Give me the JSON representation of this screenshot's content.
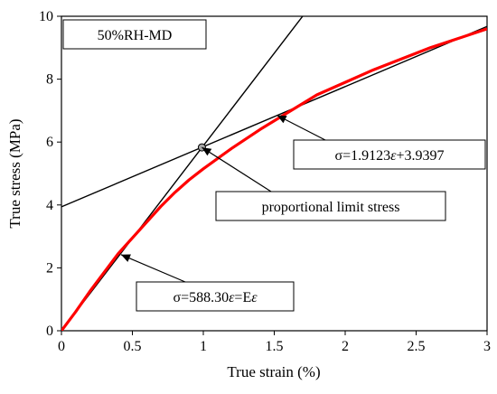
{
  "chart_data": {
    "type": "line",
    "title": "",
    "xlabel": "True strain (%)",
    "ylabel": "True stress (MPa)",
    "xlim": [
      0,
      3
    ],
    "ylim": [
      0,
      10
    ],
    "xticks": [
      "0",
      "0.5",
      "1",
      "1.5",
      "2",
      "2.5",
      "3"
    ],
    "yticks": [
      "0",
      "2",
      "4",
      "6",
      "8",
      "10"
    ],
    "grid": false,
    "legend": "none",
    "condition_label": "50%RH-MD",
    "series": [
      {
        "color": "#ff0000",
        "x": [
          0,
          0.1,
          0.2,
          0.3,
          0.4,
          0.5,
          0.6,
          0.7,
          0.8,
          0.9,
          1.0,
          1.2,
          1.4,
          1.6,
          1.8,
          2.0,
          2.2,
          2.4,
          2.6,
          2.8,
          3.0
        ],
        "y": [
          0,
          0.6,
          1.25,
          1.85,
          2.45,
          2.95,
          3.45,
          3.95,
          4.4,
          4.8,
          5.15,
          5.8,
          6.4,
          6.95,
          7.5,
          7.9,
          8.3,
          8.65,
          9.0,
          9.3,
          9.6
        ]
      }
    ],
    "fit_lines": [
      {
        "slope": 5.883,
        "intercept": 0,
        "color": "#000000"
      },
      {
        "slope": 1.9123,
        "intercept": 3.9397,
        "color": "#000000"
      }
    ],
    "proportional_limit_point": {
      "x": 0.99,
      "y": 5.83
    },
    "annotations": [
      {
        "text_parts": [
          "σ=1.9123",
          "ε",
          "+3.9397"
        ],
        "target": {
          "x": 1.52,
          "y": 6.85
        }
      },
      {
        "text_parts": [
          "proportional limit stress"
        ],
        "target": {
          "x": 0.99,
          "y": 5.83
        }
      },
      {
        "text_parts": [
          "σ=588.30",
          "ε",
          "=E",
          "ε"
        ],
        "target": {
          "x": 0.42,
          "y": 2.42
        }
      }
    ]
  }
}
